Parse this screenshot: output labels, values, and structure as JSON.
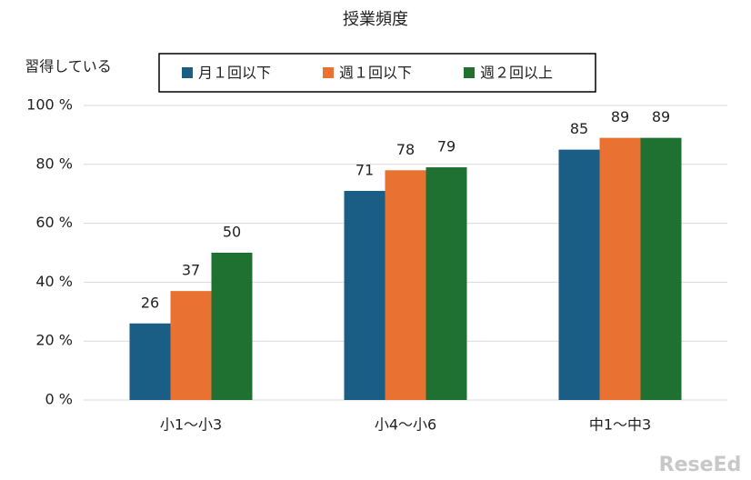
{
  "chart_data": {
    "type": "bar",
    "title": "授業頻度",
    "y_label": "習得している",
    "categories": [
      "小1～小3",
      "小4～小6",
      "中1～中3"
    ],
    "series": [
      {
        "name": "月１回以下",
        "color": "#1a5e85",
        "values": [
          26,
          71,
          85
        ]
      },
      {
        "name": "週１回以下",
        "color": "#e97132",
        "values": [
          37,
          78,
          89
        ]
      },
      {
        "name": "週２回以上",
        "color": "#1e7130",
        "values": [
          50,
          79,
          89
        ]
      }
    ],
    "ylim": [
      0,
      100
    ],
    "yticks": [
      {
        "value": 0,
        "label": "0 %"
      },
      {
        "value": 20,
        "label": "20 %"
      },
      {
        "value": 40,
        "label": "40 %"
      },
      {
        "value": 60,
        "label": "60 %"
      },
      {
        "value": 80,
        "label": "80 %"
      },
      {
        "value": 100,
        "label": "100 %"
      }
    ],
    "grid": true,
    "legend": "top",
    "watermark": "ReseEd"
  }
}
